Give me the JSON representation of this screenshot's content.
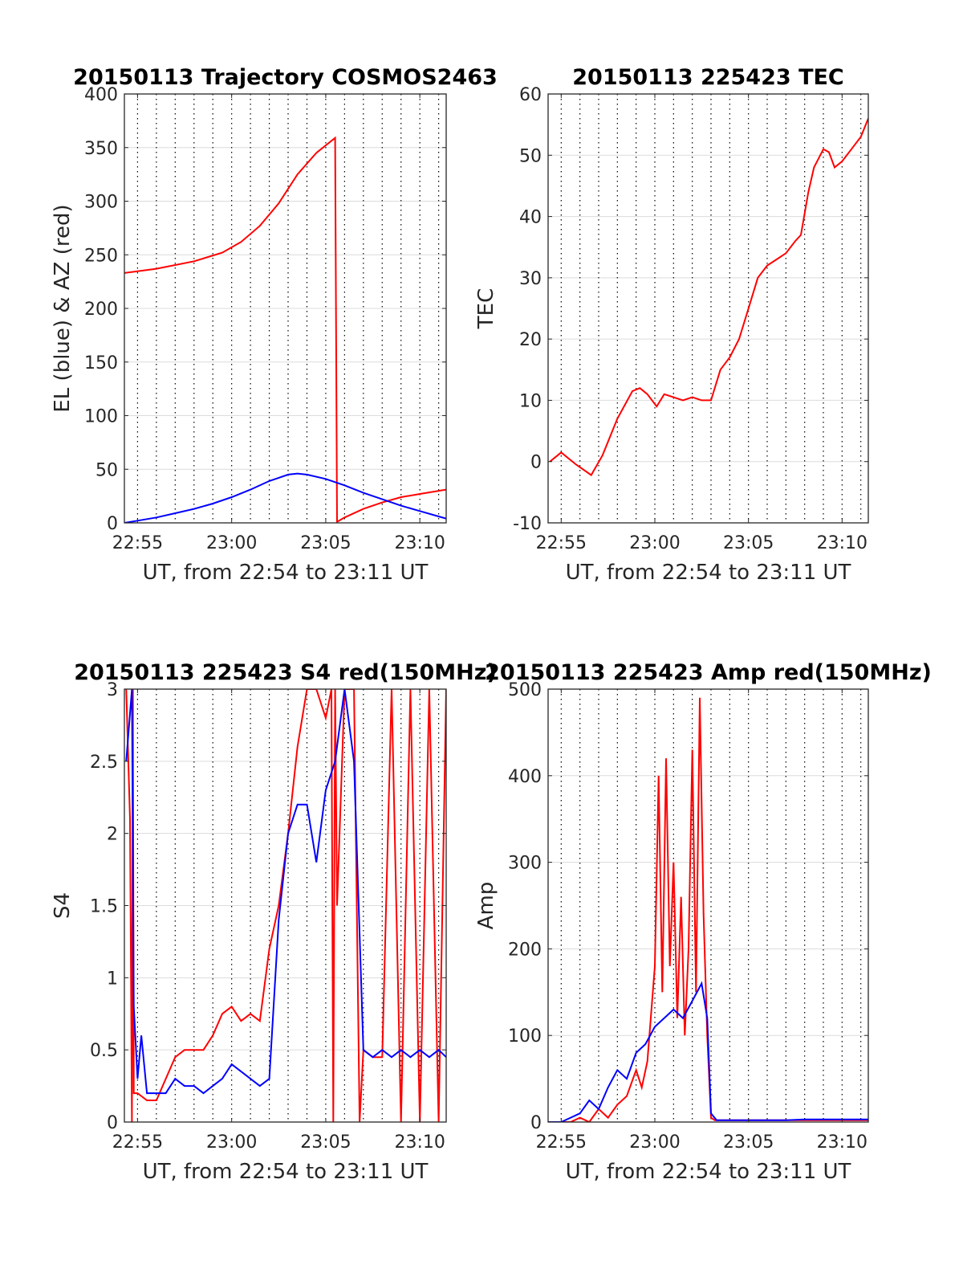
{
  "chart_data": [
    {
      "type": "line",
      "title": "20150113 Trajectory COSMOS2463",
      "xlabel": "UT, from 22:54 to 23:11 UT",
      "ylabel": "EL (blue) & AZ (red)",
      "xlim": [
        -0.7,
        16.4
      ],
      "ylim": [
        0,
        400
      ],
      "x_ticks": [
        0,
        5,
        10,
        15
      ],
      "x_tick_labels": [
        "22:55",
        "23:00",
        "23:05",
        "23:10"
      ],
      "y_ticks": [
        0,
        50,
        100,
        150,
        200,
        250,
        300,
        350,
        400
      ],
      "y_tick_labels": [
        "0",
        "50",
        "100",
        "150",
        "200",
        "250",
        "300",
        "350",
        "400"
      ],
      "grid": true,
      "series": [
        {
          "color": "#ff0000",
          "x": [
            -0.7,
            1,
            3,
            4.5,
            5.5,
            6.5,
            7.5,
            8.5,
            9.5,
            10.5,
            10.55,
            10.6,
            11,
            12,
            13,
            14,
            15,
            16.4
          ],
          "y": [
            233,
            237,
            244,
            252,
            262,
            277,
            298,
            325,
            345,
            359,
            180,
            1,
            5,
            13,
            19,
            24,
            27,
            31
          ]
        },
        {
          "color": "#0000ff",
          "x": [
            -0.7,
            0,
            1,
            2,
            3,
            4,
            5,
            6,
            7,
            7.5,
            8,
            8.5,
            9,
            10,
            11,
            12,
            13,
            14,
            15,
            16,
            16.4
          ],
          "y": [
            0,
            2,
            5,
            9,
            13,
            18,
            24,
            31,
            39,
            42,
            45,
            46,
            45,
            41,
            35,
            28,
            22,
            16,
            11,
            6,
            4
          ]
        }
      ]
    },
    {
      "type": "line",
      "title": "20150113 225423 TEC",
      "xlabel": "UT, from 22:54 to 23:11 UT",
      "ylabel": "TEC",
      "xlim": [
        -0.7,
        16.4
      ],
      "ylim": [
        -10,
        60
      ],
      "x_ticks": [
        0,
        5,
        10,
        15
      ],
      "x_tick_labels": [
        "22:55",
        "23:00",
        "23:05",
        "23:10"
      ],
      "y_ticks": [
        -10,
        0,
        10,
        20,
        30,
        40,
        50,
        60
      ],
      "y_tick_labels": [
        "-10",
        "0",
        "10",
        "20",
        "30",
        "40",
        "50",
        "60"
      ],
      "grid": true,
      "series": [
        {
          "color": "#ff0000",
          "x": [
            -0.6,
            0,
            0.8,
            1.6,
            2.2,
            3,
            3.8,
            4.2,
            4.6,
            5.1,
            5.5,
            6,
            6.5,
            7,
            7.5,
            8,
            8.5,
            9,
            9.5,
            10,
            10.5,
            11,
            11.5,
            12,
            12.5,
            12.8,
            13.2,
            13.5,
            14,
            14.3,
            14.6,
            15,
            15.5,
            16,
            16.4
          ],
          "y": [
            0,
            1.5,
            -0.5,
            -2.2,
            1,
            7,
            11.5,
            12,
            11,
            9,
            11,
            10.5,
            10,
            10.5,
            10,
            10,
            15,
            17,
            20,
            25,
            30,
            32,
            33,
            34,
            36,
            37,
            44,
            48,
            51,
            50.5,
            48,
            49,
            51,
            53,
            56
          ]
        }
      ]
    },
    {
      "type": "line",
      "title": "20150113 225423 S4 red(150MHz)",
      "xlabel": "UT, from 22:54 to 23:11 UT",
      "ylabel": "S4",
      "xlim": [
        -0.7,
        16.4
      ],
      "ylim": [
        0,
        3
      ],
      "x_ticks": [
        0,
        5,
        10,
        15
      ],
      "x_tick_labels": [
        "22:55",
        "23:00",
        "23:05",
        "23:10"
      ],
      "y_ticks": [
        0,
        0.5,
        1,
        1.5,
        2,
        2.5,
        3
      ],
      "y_tick_labels": [
        "0",
        "0.5",
        "1",
        "1.5",
        "2",
        "2.5",
        "3"
      ],
      "grid": true,
      "series": [
        {
          "color": "#ff0000",
          "x": [
            -0.6,
            -0.4,
            -0.3,
            -0.25,
            -0.2,
            0,
            0.5,
            1,
            1.5,
            2,
            2.5,
            3,
            3.5,
            4,
            4.5,
            5,
            5.5,
            6,
            6.5,
            7,
            7.5,
            8,
            8.5,
            9,
            9.5,
            10,
            10.3,
            10.4,
            10.5,
            10.6,
            11,
            11.5,
            11.8,
            12,
            12.5,
            13,
            13.5,
            14,
            14.5,
            15,
            15.5,
            16,
            16.4
          ],
          "y": [
            3,
            2.1,
            0,
            3,
            0.2,
            0.2,
            0.15,
            0.15,
            0.3,
            0.45,
            0.5,
            0.5,
            0.5,
            0.6,
            0.75,
            0.8,
            0.7,
            0.75,
            0.7,
            1.2,
            1.5,
            2.0,
            2.6,
            3,
            3,
            2.8,
            3,
            0,
            3,
            1.5,
            3,
            3,
            0,
            0.5,
            0.45,
            0.45,
            3,
            0,
            3,
            0,
            3,
            0,
            3
          ]
        },
        {
          "color": "#0000ff",
          "x": [
            -0.6,
            -0.3,
            -0.2,
            0,
            0.2,
            0.5,
            1,
            1.5,
            2,
            2.5,
            3,
            3.5,
            4,
            4.5,
            5,
            5.5,
            6,
            6.5,
            7,
            7.5,
            8,
            8.5,
            9,
            9.5,
            10,
            10.5,
            11,
            11.5,
            12,
            12.5,
            13,
            13.5,
            14,
            14.5,
            15,
            15.5,
            16,
            16.4
          ],
          "y": [
            2.5,
            3,
            0.8,
            0.3,
            0.6,
            0.2,
            0.2,
            0.2,
            0.3,
            0.25,
            0.25,
            0.2,
            0.25,
            0.3,
            0.4,
            0.35,
            0.3,
            0.25,
            0.3,
            1.4,
            2.0,
            2.2,
            2.2,
            1.8,
            2.3,
            2.5,
            3,
            2.5,
            0.5,
            0.45,
            0.5,
            0.45,
            0.5,
            0.45,
            0.5,
            0.45,
            0.5,
            0.45
          ]
        }
      ]
    },
    {
      "type": "line",
      "title": "20150113 225423 Amp red(150MHz)",
      "xlabel": "UT, from 22:54 to 23:11 UT",
      "ylabel": "Amp",
      "xlim": [
        -0.7,
        16.4
      ],
      "ylim": [
        0,
        500
      ],
      "x_ticks": [
        0,
        5,
        10,
        15
      ],
      "x_tick_labels": [
        "22:55",
        "23:00",
        "23:05",
        "23:10"
      ],
      "y_ticks": [
        0,
        100,
        200,
        300,
        400,
        500
      ],
      "y_tick_labels": [
        "0",
        "100",
        "200",
        "300",
        "400",
        "500"
      ],
      "grid": true,
      "series": [
        {
          "color": "#ff0000",
          "x": [
            -0.7,
            0.5,
            1,
            1.5,
            2,
            2.5,
            3,
            3.5,
            4,
            4.3,
            4.6,
            5,
            5.2,
            5.4,
            5.6,
            5.8,
            6,
            6.2,
            6.4,
            6.6,
            6.8,
            7,
            7.2,
            7.4,
            7.6,
            7.8,
            8,
            8.2,
            8.4,
            9,
            10,
            12,
            14,
            16.4
          ],
          "y": [
            0,
            0,
            5,
            0,
            15,
            5,
            20,
            30,
            60,
            40,
            70,
            180,
            400,
            150,
            420,
            180,
            300,
            120,
            260,
            100,
            200,
            430,
            150,
            490,
            240,
            100,
            5,
            2,
            2,
            2,
            2,
            2,
            2,
            2
          ]
        },
        {
          "color": "#0000ff",
          "x": [
            -0.7,
            0,
            0.5,
            1,
            1.5,
            2,
            2.5,
            3,
            3.5,
            4,
            4.5,
            5,
            5.5,
            6,
            6.5,
            7,
            7.5,
            7.8,
            8,
            8.3,
            9,
            10,
            11,
            12,
            13,
            14,
            15,
            16.4
          ],
          "y": [
            0,
            0,
            5,
            10,
            25,
            15,
            40,
            60,
            50,
            80,
            90,
            110,
            120,
            130,
            120,
            140,
            160,
            120,
            10,
            2,
            2,
            2,
            2,
            2,
            3,
            3,
            3,
            3
          ]
        }
      ]
    }
  ]
}
